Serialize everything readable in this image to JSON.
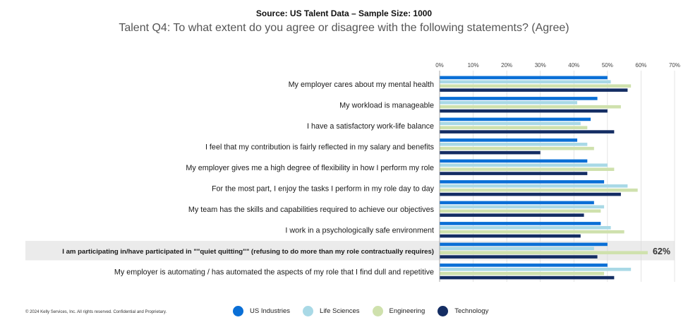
{
  "header": {
    "source": "Source: US Talent Data – Sample Size: 1000",
    "title": "Talent Q4: To what extent do you agree or disagree with the following statements? (Agree)"
  },
  "footer": {
    "copyright": "© 2024 Kelly Services, Inc.  All rights reserved.  Confidential and Proprietary."
  },
  "chart_data": {
    "type": "bar",
    "orientation": "horizontal",
    "xlim": [
      0,
      70
    ],
    "x_ticks": [
      "0%",
      "10%",
      "20%",
      "30%",
      "40%",
      "50%",
      "60%",
      "70%"
    ],
    "grid": true,
    "legend_position": "bottom",
    "categories": [
      "My employer cares about my mental health",
      "My workload is manageable",
      "I have a satisfactory work-life balance",
      "I feel that my contribution is fairly reflected in my salary and benefits",
      "My employer gives me a high degree of flexibility in how I perform my role",
      "For the most part, I enjoy the tasks I perform in my role day to day",
      "My team has the skills and capabilities required to achieve our objectives",
      "I work in a psychologically safe environment",
      "I am participating in/have participated in \"\"quiet quitting\"\" (refusing to do more than my role contractually requires)",
      "My employer is automating / has automated the aspects of my role that I find dull and repetitive"
    ],
    "highlighted_index": 8,
    "series": [
      {
        "name": "US Industries",
        "color": "#0a6fd6",
        "values": [
          50,
          47,
          45,
          41,
          44,
          49,
          46,
          48,
          50,
          50
        ]
      },
      {
        "name": "Life Sciences",
        "color": "#a9d9e6",
        "values": [
          51,
          41,
          42,
          44,
          50,
          56,
          49,
          51,
          46,
          57
        ]
      },
      {
        "name": "Engineering",
        "color": "#cfe1ad",
        "values": [
          57,
          54,
          44,
          46,
          52,
          59,
          48,
          55,
          62,
          49
        ]
      },
      {
        "name": "Technology",
        "color": "#142d63",
        "values": [
          56,
          50,
          52,
          30,
          44,
          54,
          43,
          42,
          47,
          52
        ]
      }
    ],
    "annotations": [
      {
        "text": "62%",
        "category_index": 8,
        "series": "Engineering"
      }
    ]
  }
}
